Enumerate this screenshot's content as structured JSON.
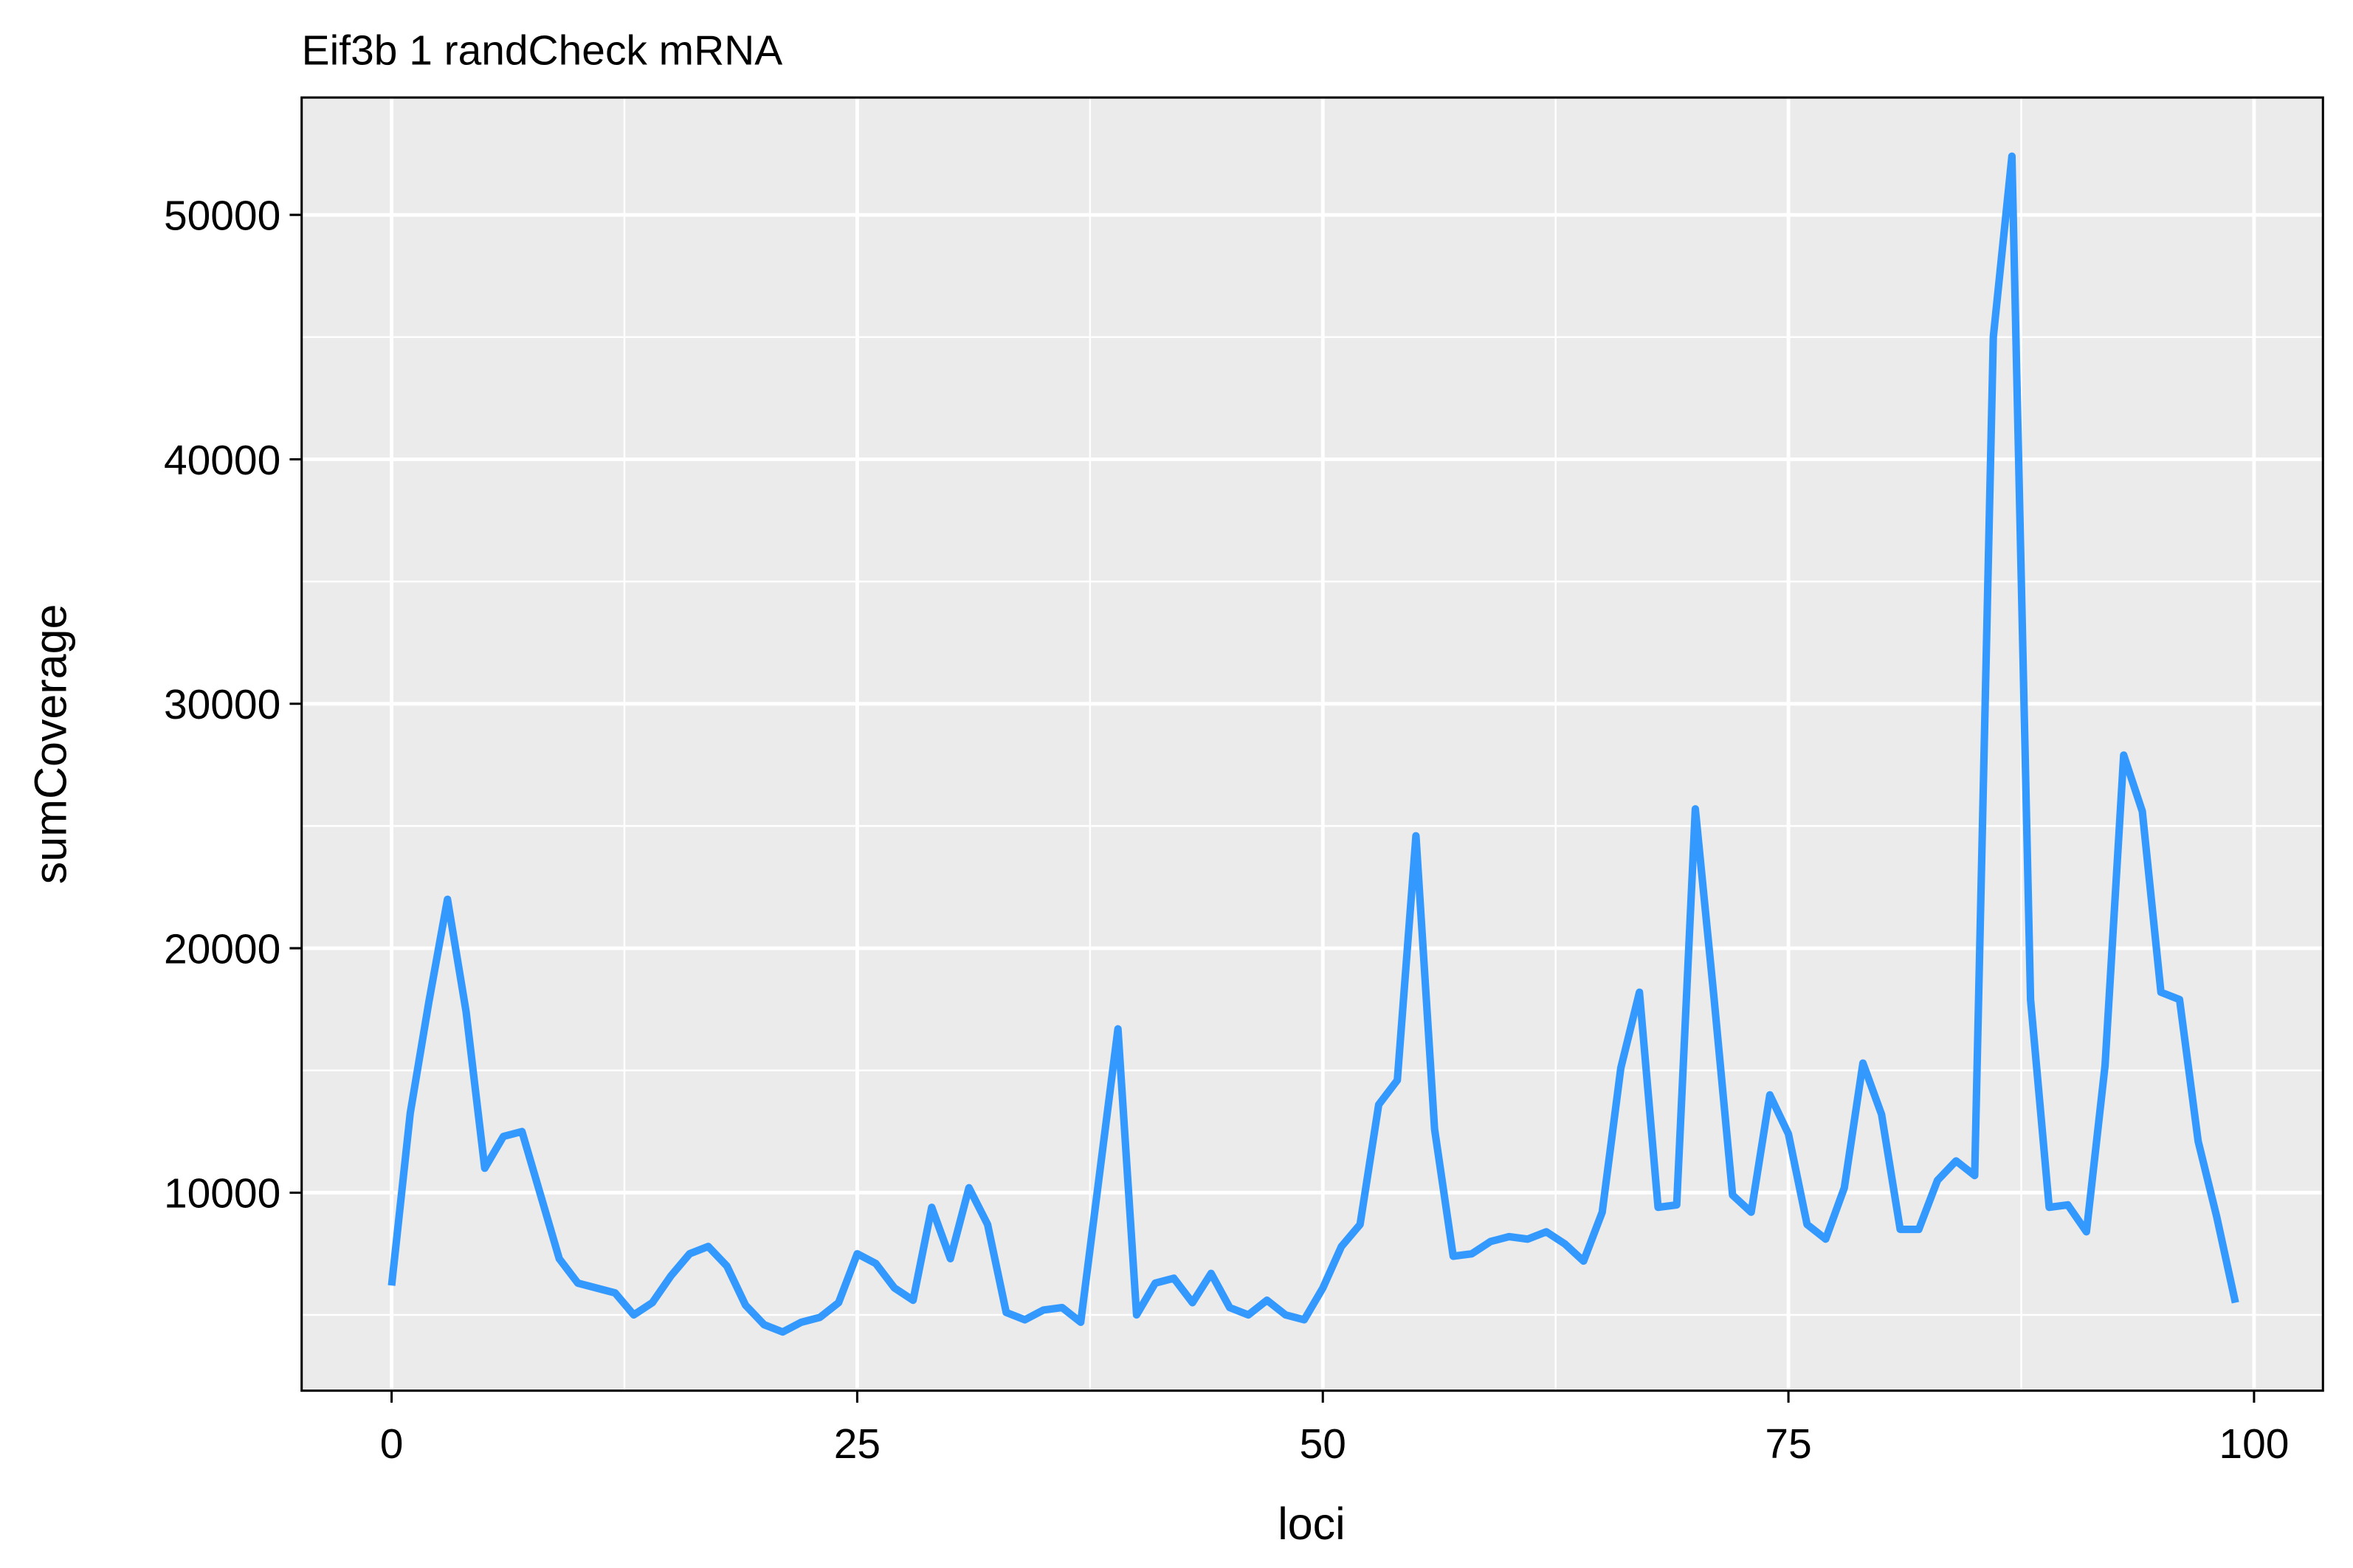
{
  "chart_data": {
    "type": "line",
    "title": "Eif3b 1 randCheck mRNA",
    "x_label": "loci",
    "y_label": "sumCoverage",
    "x": [
      0,
      1,
      2,
      3,
      4,
      5,
      6,
      7,
      8,
      9,
      10,
      11,
      12,
      13,
      14,
      15,
      16,
      17,
      18,
      19,
      20,
      21,
      22,
      23,
      24,
      25,
      26,
      27,
      28,
      29,
      30,
      31,
      32,
      33,
      34,
      35,
      36,
      37,
      38,
      39,
      40,
      41,
      42,
      43,
      44,
      45,
      46,
      47,
      48,
      49,
      50,
      51,
      52,
      53,
      54,
      55,
      56,
      57,
      58,
      59,
      60,
      61,
      62,
      63,
      64,
      65,
      66,
      67,
      68,
      69,
      70,
      71,
      72,
      73,
      74,
      75,
      76,
      77,
      78,
      79,
      80,
      81,
      82,
      83,
      84,
      85,
      86,
      87,
      88,
      89,
      90,
      91,
      92,
      93,
      94,
      95,
      96,
      97,
      98,
      99
    ],
    "series": [
      {
        "name": "sumCoverage",
        "color": "#3399ff",
        "values": [
          6200,
          13250,
          17800,
          22000,
          17400,
          11000,
          12300,
          12500,
          9900,
          7300,
          6300,
          6100,
          5900,
          5000,
          5500,
          6600,
          7500,
          7800,
          7000,
          5400,
          4600,
          4300,
          4700,
          4900,
          5500,
          7500,
          7100,
          6100,
          5600,
          9400,
          7300,
          10200,
          8700,
          5100,
          4800,
          5200,
          5300,
          4700,
          10700,
          16700,
          5000,
          6300,
          6500,
          5500,
          6700,
          5300,
          5000,
          5600,
          5000,
          4800,
          6100,
          7800,
          8700,
          13600,
          14600,
          24600,
          12600,
          7400,
          7500,
          8000,
          8200,
          8100,
          8400,
          7900,
          7200,
          9200,
          15100,
          18200,
          9400,
          9500,
          25700,
          18000,
          9900,
          9200,
          14000,
          12400,
          8700,
          8100,
          10200,
          15300,
          13200,
          8500,
          8500,
          10500,
          11300,
          10700,
          45000,
          52400,
          17900,
          9400,
          9500,
          8400,
          15200,
          27900,
          25600,
          18200,
          17900,
          12100,
          9000,
          5500
        ]
      }
    ],
    "xlim": [
      -4.83,
      103.7
    ],
    "xticks": [
      0,
      25,
      50,
      75,
      100
    ],
    "ylim": [
      1900,
      54800
    ],
    "yticks": [
      10000,
      20000,
      30000,
      40000,
      50000
    ],
    "grid": true
  }
}
